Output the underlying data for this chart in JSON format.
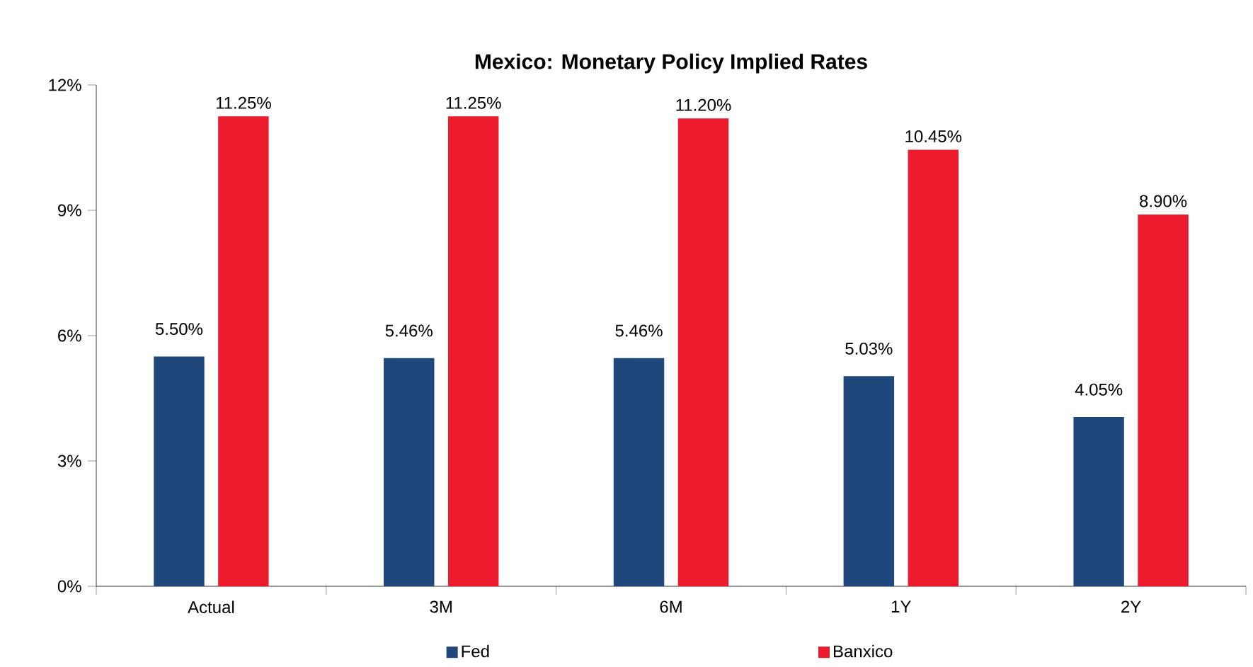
{
  "chart_data": {
    "type": "bar",
    "title": "Mexico: Monetary Policy Implied Rates",
    "categories": [
      "Actual",
      "3M",
      "6M",
      "1Y",
      "2Y"
    ],
    "series": [
      {
        "name": "Fed",
        "color": "#1f477c",
        "values": [
          5.5,
          5.46,
          5.46,
          5.03,
          4.05
        ],
        "value_labels": [
          "5.50%",
          "5.46%",
          "5.46%",
          "5.03%",
          "4.05%"
        ]
      },
      {
        "name": "Banxico",
        "color": "#ec1c2e",
        "values": [
          11.25,
          11.25,
          11.2,
          10.45,
          8.9
        ],
        "value_labels": [
          "11.25%",
          "11.25%",
          "11.20%",
          "10.45%",
          "8.90%"
        ]
      }
    ],
    "ylim": [
      0,
      12
    ],
    "yticks": [
      {
        "value": 0,
        "label": "0%"
      },
      {
        "value": 3,
        "label": "3%"
      },
      {
        "value": 6,
        "label": "6%"
      },
      {
        "value": 9,
        "label": "9%"
      },
      {
        "value": 12,
        "label": "12%"
      }
    ],
    "grid": false,
    "legend": "bottom"
  }
}
